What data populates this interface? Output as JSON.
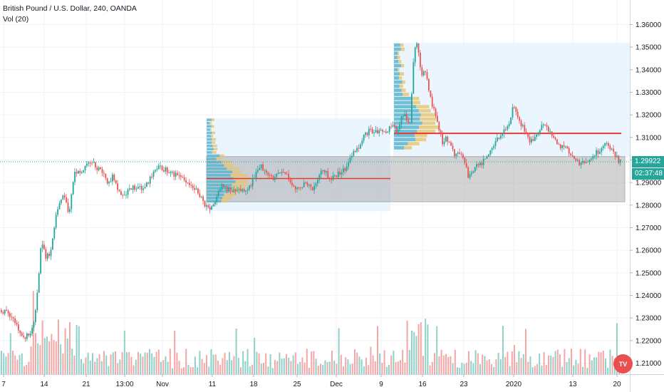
{
  "legend": {
    "symbol": "British Pound / U.S. Dollar, 240, OANDA",
    "volume": "Vol (20)"
  },
  "price_tags": {
    "last_price": "1.29922",
    "countdown": "02:37:48"
  },
  "colors": {
    "up": "#26a69a",
    "down": "#ef5350",
    "up_vol": "#8fd0c7",
    "down_vol": "#f4a7a5",
    "poc": "#e53935",
    "last_price": "#26a69a",
    "profile_up": "#5bb5cf",
    "profile_down": "#e9c46a",
    "range_box": "#9e9e9e"
  },
  "chart_data": {
    "type": "candlestick",
    "title": "British Pound / U.S. Dollar, 240, OANDA",
    "indicator": "Vol (20)",
    "y_axis": {
      "ticks": [
        "1.36000",
        "1.35000",
        "1.34000",
        "1.33000",
        "1.32000",
        "1.31000",
        "1.30000",
        "1.29000",
        "1.28000",
        "1.27000",
        "1.26000",
        "1.25000",
        "1.24000",
        "1.23000",
        "1.22000",
        "1.21000"
      ],
      "ylim": [
        1.205,
        1.364
      ]
    },
    "x_axis": {
      "ticks": [
        "7",
        "14",
        "21",
        "13:00",
        "Nov",
        "11",
        "18",
        "25",
        "Dec",
        "9",
        "16",
        "23",
        "2020",
        "13",
        "20"
      ]
    },
    "last_price": 1.29922,
    "key_levels": {
      "range_box": [
        1.2815,
        1.3015
      ],
      "poc_upper": 1.3118,
      "poc_lower": 1.2918
    },
    "price_path": [
      [
        0,
        1.2335
      ],
      [
        10,
        1.2325
      ],
      [
        20,
        1.228
      ],
      [
        30,
        1.221
      ],
      [
        40,
        1.2225
      ],
      [
        48,
        1.23
      ],
      [
        52,
        1.242
      ],
      [
        57,
        1.265
      ],
      [
        63,
        1.257
      ],
      [
        70,
        1.259
      ],
      [
        78,
        1.276
      ],
      [
        88,
        1.285
      ],
      [
        96,
        1.276
      ],
      [
        104,
        1.296
      ],
      [
        112,
        1.293
      ],
      [
        120,
        1.299
      ],
      [
        128,
        1.299
      ],
      [
        135,
        1.296
      ],
      [
        143,
        1.295
      ],
      [
        150,
        1.29
      ],
      [
        158,
        1.293
      ],
      [
        166,
        1.286
      ],
      [
        174,
        1.284
      ],
      [
        182,
        1.287
      ],
      [
        190,
        1.288
      ],
      [
        198,
        1.287
      ],
      [
        206,
        1.289
      ],
      [
        214,
        1.294
      ],
      [
        222,
        1.2965
      ],
      [
        230,
        1.296
      ],
      [
        238,
        1.294
      ],
      [
        246,
        1.293
      ],
      [
        254,
        1.292
      ],
      [
        262,
        1.291
      ],
      [
        270,
        1.288
      ],
      [
        278,
        1.285
      ],
      [
        286,
        1.28
      ],
      [
        294,
        1.278
      ],
      [
        302,
        1.283
      ],
      [
        310,
        1.288
      ],
      [
        318,
        1.287
      ],
      [
        326,
        1.286
      ],
      [
        334,
        1.286
      ],
      [
        342,
        1.287
      ],
      [
        350,
        1.288
      ],
      [
        358,
        1.294
      ],
      [
        366,
        1.297
      ],
      [
        374,
        1.295
      ],
      [
        382,
        1.292
      ],
      [
        390,
        1.295
      ],
      [
        398,
        1.296
      ],
      [
        406,
        1.29
      ],
      [
        414,
        1.286
      ],
      [
        422,
        1.289
      ],
      [
        430,
        1.29
      ],
      [
        438,
        1.287
      ],
      [
        446,
        1.293
      ],
      [
        454,
        1.296
      ],
      [
        462,
        1.292
      ],
      [
        470,
        1.293
      ],
      [
        478,
        1.295
      ],
      [
        486,
        1.297
      ],
      [
        494,
        1.303
      ],
      [
        502,
        1.305
      ],
      [
        510,
        1.311
      ],
      [
        518,
        1.313
      ],
      [
        526,
        1.312
      ],
      [
        534,
        1.314
      ],
      [
        542,
        1.313
      ],
      [
        550,
        1.315
      ],
      [
        556,
        1.313
      ],
      [
        562,
        1.318
      ],
      [
        568,
        1.321
      ],
      [
        574,
        1.313
      ],
      [
        580,
        1.348
      ],
      [
        585,
        1.351
      ],
      [
        590,
        1.338
      ],
      [
        596,
        1.34
      ],
      [
        602,
        1.329
      ],
      [
        608,
        1.322
      ],
      [
        614,
        1.316
      ],
      [
        620,
        1.308
      ],
      [
        626,
        1.31
      ],
      [
        632,
        1.306
      ],
      [
        638,
        1.301
      ],
      [
        644,
        1.304
      ],
      [
        650,
        1.3
      ],
      [
        656,
        1.293
      ],
      [
        662,
        1.295
      ],
      [
        668,
        1.297
      ],
      [
        676,
        1.299
      ],
      [
        684,
        1.301
      ],
      [
        690,
        1.305
      ],
      [
        696,
        1.309
      ],
      [
        702,
        1.312
      ],
      [
        708,
        1.313
      ],
      [
        714,
        1.317
      ],
      [
        720,
        1.325
      ],
      [
        726,
        1.32
      ],
      [
        732,
        1.315
      ],
      [
        738,
        1.311
      ],
      [
        744,
        1.308
      ],
      [
        750,
        1.31
      ],
      [
        756,
        1.314
      ],
      [
        762,
        1.316
      ],
      [
        768,
        1.313
      ],
      [
        774,
        1.311
      ],
      [
        780,
        1.308
      ],
      [
        786,
        1.305
      ],
      [
        792,
        1.306
      ],
      [
        798,
        1.304
      ],
      [
        804,
        1.301
      ],
      [
        810,
        1.299
      ],
      [
        816,
        1.298
      ],
      [
        822,
        1.3
      ],
      [
        828,
        1.301
      ],
      [
        834,
        1.303
      ],
      [
        840,
        1.304
      ],
      [
        846,
        1.306
      ],
      [
        852,
        1.308
      ],
      [
        858,
        1.304
      ],
      [
        864,
        1.301
      ],
      [
        870,
        1.2992
      ]
    ]
  }
}
